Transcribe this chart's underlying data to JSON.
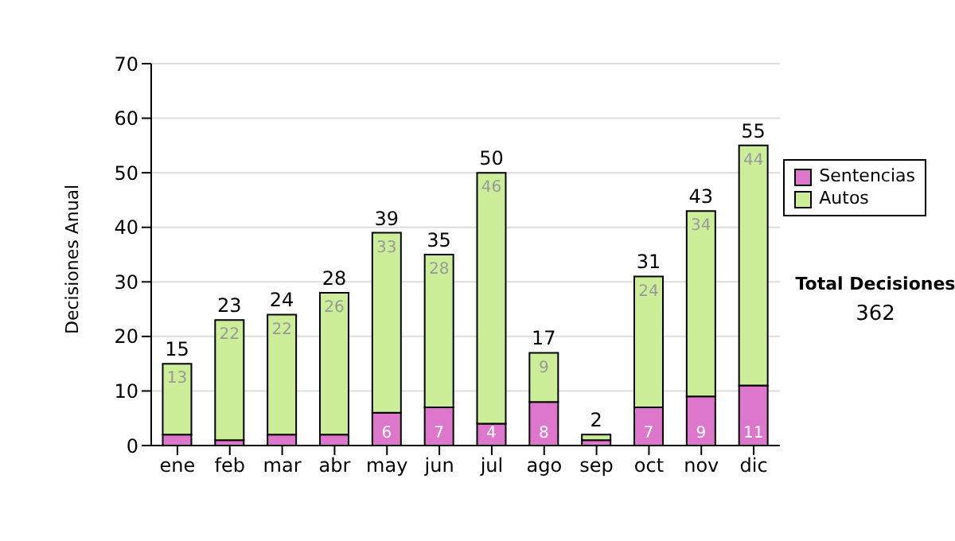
{
  "chart_data": {
    "type": "bar",
    "stacked": true,
    "ylabel": "Decisiones Anual",
    "categories": [
      "ene",
      "feb",
      "mar",
      "abr",
      "may",
      "jun",
      "jul",
      "ago",
      "sep",
      "oct",
      "nov",
      "dic"
    ],
    "series": [
      {
        "name": "Sentencias",
        "color": "#dd77cc",
        "values": [
          2,
          1,
          2,
          2,
          6,
          7,
          4,
          8,
          1,
          7,
          9,
          11
        ],
        "value_labels": [
          null,
          null,
          null,
          null,
          "6",
          "7",
          "4",
          "8",
          null,
          "7",
          "9",
          "11"
        ]
      },
      {
        "name": "Autos",
        "color": "#ccee99",
        "values": [
          13,
          22,
          22,
          26,
          33,
          28,
          46,
          9,
          1,
          24,
          34,
          44
        ],
        "value_labels": [
          "13",
          "22",
          "22",
          "26",
          "33",
          "28",
          "46",
          "9",
          null,
          "24",
          "34",
          "44"
        ]
      }
    ],
    "totals": [
      "15",
      "23",
      "24",
      "28",
      "39",
      "35",
      "50",
      "17",
      "2",
      "31",
      "43",
      "55"
    ],
    "ylim": [
      0,
      70
    ],
    "yticks": [
      0,
      10,
      20,
      30,
      40,
      50,
      60,
      70
    ],
    "grid": "y",
    "legend": "right",
    "annotations": [
      "Total Decisiones",
      "362"
    ]
  }
}
